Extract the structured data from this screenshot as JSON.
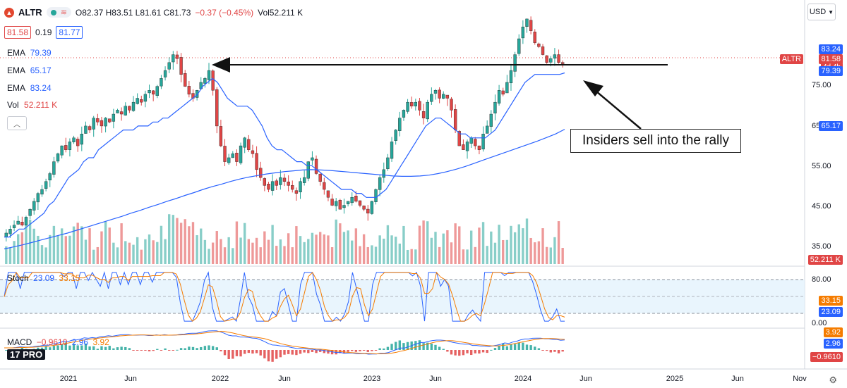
{
  "header": {
    "ticker": "ALTR",
    "ohlc": "O82.37 H83.51 L81.61 C81.73",
    "change": "−0.37 (−0.45%)",
    "volume": "Vol52.211 K",
    "bid": "81.58",
    "spread": "0.19",
    "ask": "81.77"
  },
  "indicators": {
    "ema1": {
      "name": "EMA",
      "value": "79.39",
      "color": "#2962ff"
    },
    "ema2": {
      "name": "EMA",
      "value": "65.17",
      "color": "#2962ff"
    },
    "ema3": {
      "name": "EMA",
      "value": "83.24",
      "color": "#2962ff"
    },
    "vol": {
      "name": "Vol",
      "value": "52.211 K",
      "color": "#e04545"
    },
    "stoch": {
      "name": "Stoch",
      "k": "23.09",
      "d": "33.15"
    },
    "macd": {
      "name": "MACD",
      "hist": "−0.9610",
      "macd": "2.96",
      "signal": "3.92"
    }
  },
  "currency": "USD",
  "annotation": "Insiders sell into the rally",
  "price_tags": {
    "ema3": "83.24",
    "ticker": "ALTR",
    "countdown": "4d 4h",
    "ema1": "79.39",
    "ema2": "65.17",
    "vol": "52.211 K",
    "stoch_d": "33.15",
    "stoch_k": "23.09",
    "macd_signal": "3.92",
    "macd_line": "2.96",
    "macd_hist": "−0.9610"
  },
  "tv_logo": "17 PRO",
  "colors": {
    "up": "#26a69a",
    "down": "#e04545",
    "ema_fast": "#2962ff",
    "orange": "#f57c00"
  },
  "chart_data": {
    "type": "candlestick",
    "price_axis": {
      "ticks": [
        "75.00",
        "65.00",
        "55.00",
        "45.00",
        "35.00"
      ],
      "ylim": [
        31,
        96
      ]
    },
    "time_axis": [
      "2021",
      "Jun",
      "2022",
      "Jun",
      "2023",
      "Jun",
      "2024",
      "Jun",
      "2025",
      "Jun",
      "Nov"
    ],
    "close": [
      39,
      40,
      41,
      42,
      41,
      43,
      45,
      47,
      49,
      50,
      52,
      54,
      57,
      59,
      61,
      60,
      62,
      63,
      61,
      64,
      66,
      65,
      68,
      67,
      66,
      68,
      67,
      69,
      70,
      69,
      71,
      70,
      72,
      73,
      72,
      74,
      75,
      74,
      76,
      78,
      80,
      82,
      84,
      83,
      79,
      76,
      74,
      73,
      75,
      77,
      78,
      80,
      75,
      66,
      61,
      57,
      58,
      59,
      57,
      61,
      63,
      60,
      59,
      55,
      53,
      51,
      50,
      52,
      51,
      53,
      52,
      51,
      50,
      49,
      52,
      53,
      57,
      58,
      54,
      52,
      50,
      48,
      46,
      47,
      45,
      46,
      47,
      48,
      47,
      46,
      45,
      44,
      47,
      50,
      53,
      55,
      58,
      62,
      65,
      68,
      70,
      72,
      71,
      72,
      70,
      68,
      72,
      74,
      75,
      73,
      74,
      73,
      70,
      65,
      61,
      60,
      62,
      63,
      61,
      60,
      64,
      66,
      69,
      72,
      75,
      74,
      77,
      80,
      84,
      88,
      91,
      93,
      90,
      87,
      86,
      84,
      82,
      83,
      84,
      82,
      81.7
    ],
    "ema_fast": [
      38,
      38,
      39,
      40,
      40,
      41,
      42,
      43,
      44,
      46,
      47,
      49,
      51,
      53,
      54,
      55,
      57,
      58,
      58,
      60,
      61,
      62,
      63,
      64,
      65,
      65,
      65,
      66,
      66,
      66,
      67,
      67,
      68,
      68,
      69,
      70,
      71,
      72,
      73,
      74,
      76,
      77,
      78,
      77,
      75,
      73,
      72,
      71,
      71,
      71,
      70,
      68,
      66,
      63,
      61,
      60,
      60,
      59,
      58,
      57,
      57,
      56,
      56,
      55,
      54,
      53,
      52,
      51,
      50,
      50,
      50,
      49,
      49,
      48,
      48,
      48,
      49,
      50,
      52,
      54,
      56,
      58,
      60,
      62,
      64,
      66,
      67,
      68,
      68,
      67,
      66,
      65,
      64,
      64,
      63,
      63,
      63,
      63,
      64,
      65,
      67,
      69,
      71,
      73,
      75,
      77,
      78,
      79,
      79,
      79,
      79,
      79,
      79,
      79.4
    ],
    "ema_slow": [
      35,
      35.5,
      36,
      36.6,
      37.2,
      37.8,
      38.4,
      39,
      39.7,
      40.4,
      41.1,
      41.8,
      42.5,
      43.2,
      44,
      44.7,
      45.5,
      46.2,
      47,
      47.7,
      48.5,
      49.2,
      50,
      50.7,
      51.3,
      52,
      52.6,
      53.1,
      53.5,
      53.9,
      54.2,
      54.5,
      54.7,
      54.9,
      55,
      54.9,
      54.8,
      54.6,
      54.4,
      54.2,
      54,
      53.8,
      53.6,
      53.4,
      53.3,
      53.3,
      53.4,
      53.6,
      54,
      54.5,
      55.1,
      55.8,
      56.6,
      57.4,
      58.2,
      59,
      59.8,
      60.6,
      61.4,
      62.2,
      63.1,
      64,
      65.17
    ],
    "volume_note": "Histogram bars coloured by candle direction",
    "stoch_axis": [
      "80.00",
      "20.00",
      "0.00"
    ]
  }
}
